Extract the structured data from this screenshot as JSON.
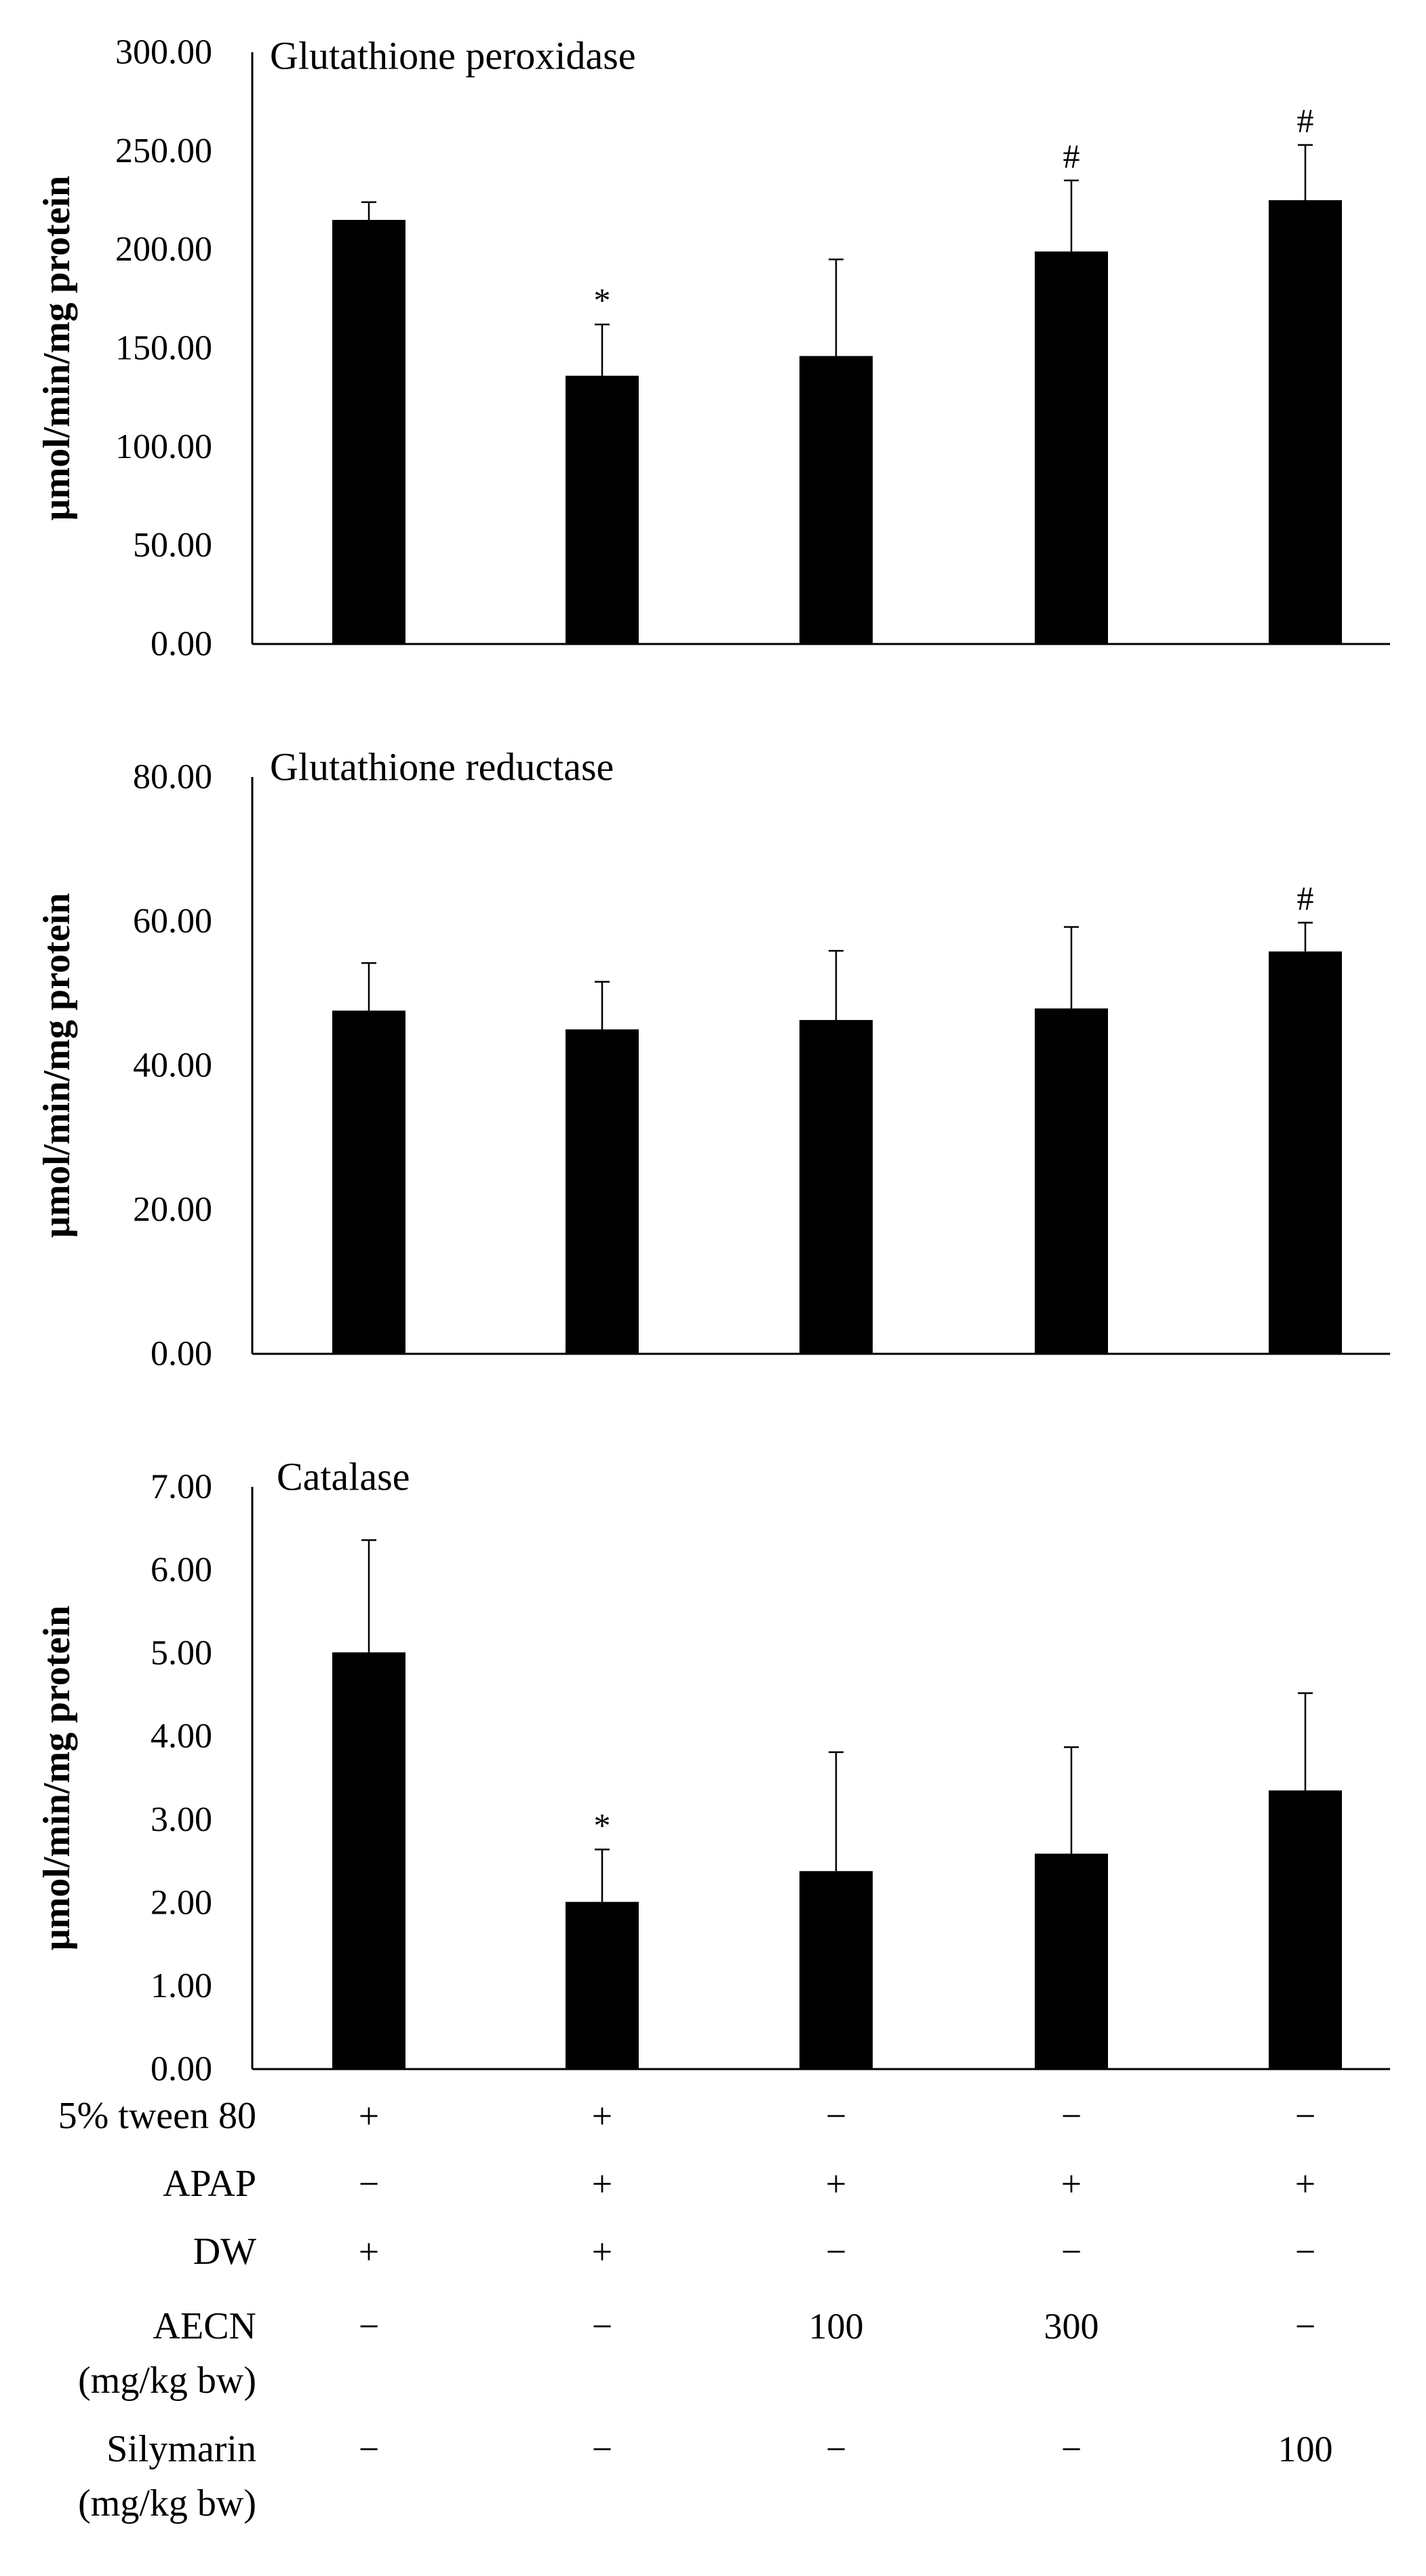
{
  "chart_data": [
    {
      "type": "bar",
      "title": "Glutathione peroxidase",
      "ylabel": "μmol/min/mg protein",
      "ylim": [
        0,
        300
      ],
      "yticks": [
        "0.00",
        "50.00",
        "100.00",
        "150.00",
        "200.00",
        "250.00",
        "300.00"
      ],
      "values": [
        215,
        136,
        146,
        199,
        225
      ],
      "errors": [
        9,
        26,
        49,
        36,
        28
      ],
      "annotations": [
        "",
        "*",
        "",
        "#",
        "#"
      ]
    },
    {
      "type": "bar",
      "title": "Glutathione reductase",
      "ylabel": "μmol/min/mg protein",
      "ylim": [
        0,
        80
      ],
      "yticks": [
        "0.00",
        "20.00",
        "40.00",
        "60.00",
        "80.00"
      ],
      "values": [
        47.6,
        45.0,
        46.3,
        47.9,
        55.8
      ],
      "errors": [
        6.6,
        6.6,
        9.6,
        11.3,
        4.0
      ],
      "annotations": [
        "",
        "",
        "",
        "",
        "#"
      ]
    },
    {
      "type": "bar",
      "title": "Catalase",
      "ylabel": "μmol/min/mg protein",
      "ylim": [
        0,
        7
      ],
      "yticks": [
        "0.00",
        "1.00",
        "2.00",
        "3.00",
        "4.00",
        "5.00",
        "6.00",
        "7.00"
      ],
      "values": [
        5.01,
        2.01,
        2.38,
        2.59,
        3.35
      ],
      "errors": [
        1.35,
        0.63,
        1.43,
        1.28,
        1.17
      ],
      "annotations": [
        "",
        "*",
        "",
        "",
        ""
      ]
    }
  ],
  "treatment_table": {
    "rows": [
      {
        "label": [
          "5% tween 80"
        ],
        "cells": [
          "+",
          "+",
          "−",
          "−",
          "−"
        ]
      },
      {
        "label": [
          "APAP"
        ],
        "cells": [
          "−",
          "+",
          "+",
          "+",
          "+"
        ]
      },
      {
        "label": [
          "DW"
        ],
        "cells": [
          "+",
          "+",
          "−",
          "−",
          "−"
        ]
      },
      {
        "label": [
          "AECN",
          "(mg/kg bw)"
        ],
        "cells": [
          "−",
          "−",
          "100",
          "300",
          "−"
        ]
      },
      {
        "label": [
          "Silymarin",
          "(mg/kg bw)"
        ],
        "cells": [
          "−",
          "−",
          "−",
          "−",
          "100"
        ]
      }
    ]
  }
}
